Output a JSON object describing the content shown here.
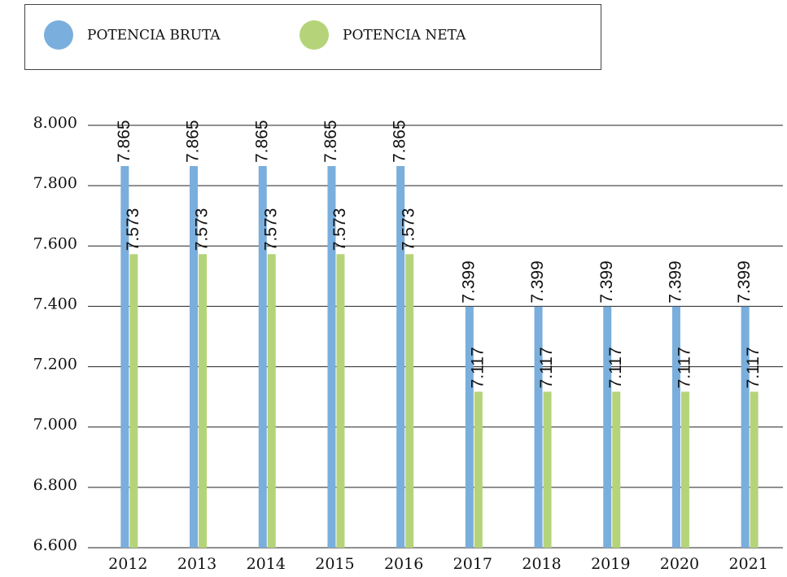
{
  "chart_data": {
    "type": "bar",
    "categories": [
      "2012",
      "2013",
      "2014",
      "2015",
      "2016",
      "2017",
      "2018",
      "2019",
      "2020",
      "2021"
    ],
    "series": [
      {
        "name": "POTENCIA BRUTA",
        "color": "#7aaedc",
        "values": [
          7865,
          7865,
          7865,
          7865,
          7865,
          7399,
          7399,
          7399,
          7399,
          7399
        ],
        "value_labels": [
          "7.865",
          "7.865",
          "7.865",
          "7.865",
          "7.865",
          "7.399",
          "7.399",
          "7.399",
          "7.399",
          "7.399"
        ]
      },
      {
        "name": "POTENCIA NETA",
        "color": "#b5d47a",
        "values": [
          7573,
          7573,
          7573,
          7573,
          7573,
          7117,
          7117,
          7117,
          7117,
          7117
        ],
        "value_labels": [
          "7.573",
          "7.573",
          "7.573",
          "7.573",
          "7.573",
          "7.117",
          "7.117",
          "7.117",
          "7.117",
          "7.117"
        ]
      }
    ],
    "ylim": [
      6600,
      8000
    ],
    "yticks": [
      {
        "value": 6600,
        "label": "6.600"
      },
      {
        "value": 6800,
        "label": "6.800"
      },
      {
        "value": 7000,
        "label": "7.000"
      },
      {
        "value": 7200,
        "label": "7.200"
      },
      {
        "value": 7400,
        "label": "7.400"
      },
      {
        "value": 7600,
        "label": "7.600"
      },
      {
        "value": 7800,
        "label": "7.800"
      },
      {
        "value": 8000,
        "label": "8.000"
      }
    ],
    "grid": true,
    "legend": "top"
  }
}
